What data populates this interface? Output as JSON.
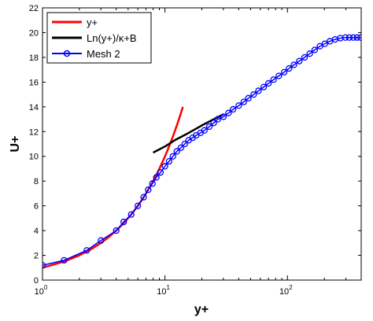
{
  "chart_data": {
    "type": "line",
    "xscale": "log",
    "xlim": [
      1,
      400
    ],
    "ylim": [
      0,
      22
    ],
    "xlabel": "y+",
    "ylabel": "U+",
    "grid": false,
    "legend_position": "top-left",
    "x_ticks": [
      {
        "value": 1,
        "base": "10",
        "exp": "0"
      },
      {
        "value": 10,
        "base": "10",
        "exp": "1"
      },
      {
        "value": 100,
        "base": "10",
        "exp": "2"
      }
    ],
    "y_ticks": [
      0,
      2,
      4,
      6,
      8,
      10,
      12,
      14,
      16,
      18,
      20,
      22
    ],
    "series": [
      {
        "name": "y+",
        "color": "#ff0000",
        "marker": "none",
        "x": [
          1,
          1.5,
          2,
          2.5,
          3,
          3.5,
          4,
          4.5,
          5,
          5.5,
          6,
          6.5,
          7,
          7.5,
          8,
          8.5,
          9,
          9.5,
          10,
          10.5,
          11,
          11.5,
          12,
          12.5,
          13,
          13.5,
          14
        ],
        "y": [
          1,
          1.5,
          2,
          2.5,
          3,
          3.5,
          4,
          4.5,
          5,
          5.5,
          6,
          6.5,
          7,
          7.5,
          8,
          8.5,
          9,
          9.5,
          10,
          10.5,
          11,
          11.5,
          12,
          12.5,
          13,
          13.5,
          14
        ]
      },
      {
        "name": "Ln(y+)/κ+B",
        "color": "#000000",
        "marker": "none",
        "x": [
          8,
          10,
          12,
          15,
          20,
          25,
          30
        ],
        "y": [
          10.3,
          10.8,
          11.3,
          11.8,
          12.5,
          13.0,
          13.4
        ]
      },
      {
        "name": "Mesh 2",
        "color": "#0000ff",
        "marker": "circle",
        "x": [
          1,
          1.5,
          2.3,
          3,
          4,
          4.6,
          5.3,
          6,
          6.7,
          7.3,
          7.9,
          8.5,
          9.2,
          10,
          10.8,
          11.6,
          12.5,
          13.5,
          14.5,
          15.6,
          16.8,
          18,
          19.5,
          21,
          23,
          25,
          27,
          30,
          33,
          36,
          40,
          44,
          48,
          53,
          58,
          64,
          70,
          77,
          85,
          94,
          103,
          113,
          125,
          138,
          152,
          167,
          184,
          202,
          222,
          245,
          270,
          297,
          320,
          345,
          370,
          395
        ],
        "y": [
          1.2,
          1.6,
          2.4,
          3.2,
          4.0,
          4.7,
          5.3,
          6.0,
          6.7,
          7.3,
          7.8,
          8.3,
          8.7,
          9.2,
          9.6,
          10.0,
          10.4,
          10.7,
          11.0,
          11.3,
          11.5,
          11.7,
          11.9,
          12.1,
          12.4,
          12.7,
          13.0,
          13.2,
          13.5,
          13.8,
          14.1,
          14.4,
          14.7,
          15.0,
          15.3,
          15.6,
          15.9,
          16.2,
          16.5,
          16.8,
          17.1,
          17.4,
          17.7,
          18.0,
          18.3,
          18.6,
          18.9,
          19.1,
          19.3,
          19.45,
          19.55,
          19.6,
          19.6,
          19.6,
          19.6,
          19.6
        ]
      }
    ]
  }
}
